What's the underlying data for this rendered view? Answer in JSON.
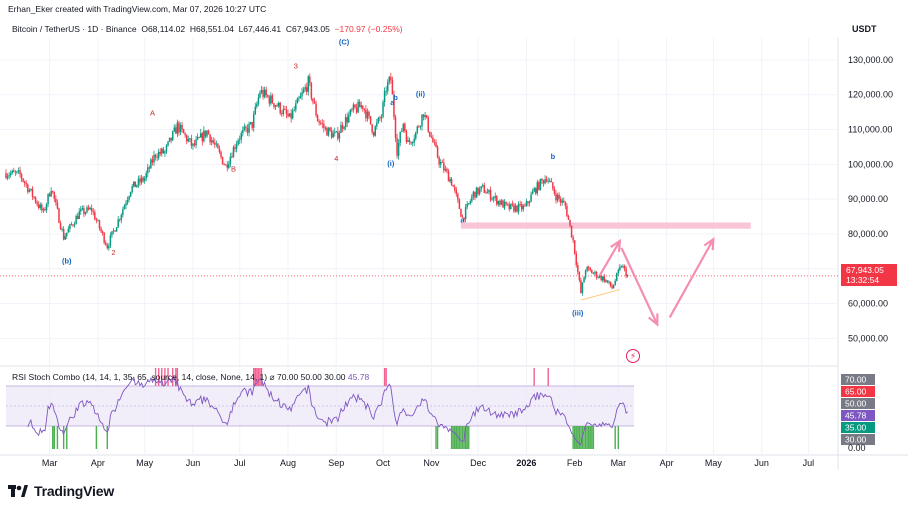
{
  "header": {
    "creator": "Erhan_Eker created with TradingView.com, Mar 07, 2026 10:27 UTC",
    "symbol": "Bitcoin / TetherUS · 1D · Binance",
    "open_label": "O",
    "open": "68,114.02",
    "high_label": "H",
    "high": "68,551.04",
    "low_label": "L",
    "low": "67,446.41",
    "close_label": "C",
    "close": "67,943.05",
    "change": "−170.97 (−0.25%)"
  },
  "currency": "USDT",
  "last_price": {
    "value": "67,943.05",
    "countdown": "13:32:54",
    "color": "#f23645"
  },
  "rsi_header": {
    "text": "RSI Stoch Combo (14, 14, 1, 35, 65, source, 14, close, None, 14, 1) ⌀ 70.00 50.00 30.00",
    "value": "45.78"
  },
  "logo": {
    "name": "TradingView",
    "icon": "tradingview-logo-icon"
  },
  "colors": {
    "up": "#089981",
    "down": "#f23645",
    "rsi_line": "#7e57c2",
    "zone": "#f8bbd0",
    "arrow": "#f48fb1",
    "wave_blue": "#1565c0",
    "wave_red": "#c62828"
  },
  "chart_data": {
    "type": "candlestick",
    "title": "Bitcoin / TetherUS · 1D · Binance",
    "currency": "USDT",
    "price_axis": {
      "ticks": [
        130000,
        120000,
        110000,
        100000,
        90000,
        80000,
        70000,
        60000,
        50000
      ],
      "tick_labels": [
        "130,000.00",
        "120,000.00",
        "110,000.00",
        "100,000.00",
        "90,000.00",
        "80,000.00",
        "70,000.00",
        "60,000.00",
        "50,000.00"
      ],
      "range": [
        43000,
        137000
      ]
    },
    "time_axis": {
      "labels": [
        "Mar",
        "Apr",
        "May",
        "Jun",
        "Jul",
        "Aug",
        "Sep",
        "Oct",
        "Nov",
        "Dec",
        "2026",
        "Feb",
        "Mar",
        "Apr",
        "May",
        "Jun",
        "Jul"
      ],
      "label_dates": [
        "2025-03-01",
        "2025-04-01",
        "2025-05-01",
        "2025-06-01",
        "2025-07-01",
        "2025-08-01",
        "2025-09-01",
        "2025-10-01",
        "2025-11-01",
        "2025-12-01",
        "2026-01-01",
        "2026-02-01",
        "2026-03-01",
        "2026-04-01",
        "2026-05-01",
        "2026-06-01",
        "2026-07-01"
      ],
      "range": [
        "2025-02-01",
        "2026-07-20"
      ]
    },
    "price_path": [
      [
        "2025-02-01",
        97500
      ],
      [
        "2025-02-10",
        97000
      ],
      [
        "2025-02-25",
        86000
      ],
      [
        "2025-03-02",
        93500
      ],
      [
        "2025-03-10",
        79000
      ],
      [
        "2025-03-20",
        86000
      ],
      [
        "2025-03-28",
        87000
      ],
      [
        "2025-04-07",
        76500
      ],
      [
        "2025-04-15",
        85000
      ],
      [
        "2025-04-22",
        93000
      ],
      [
        "2025-05-01",
        96000
      ],
      [
        "2025-05-08",
        103000
      ],
      [
        "2025-05-14",
        103500
      ],
      [
        "2025-05-22",
        111000
      ],
      [
        "2025-06-01",
        105000
      ],
      [
        "2025-06-10",
        109500
      ],
      [
        "2025-06-22",
        99500
      ],
      [
        "2025-06-30",
        107500
      ],
      [
        "2025-07-09",
        111500
      ],
      [
        "2025-07-14",
        121000
      ],
      [
        "2025-07-25",
        117000
      ],
      [
        "2025-08-02",
        113000
      ],
      [
        "2025-08-09",
        119000
      ],
      [
        "2025-08-14",
        123500
      ],
      [
        "2025-08-20",
        113000
      ],
      [
        "2025-08-25",
        110000
      ],
      [
        "2025-09-01",
        108000
      ],
      [
        "2025-09-05",
        111500
      ],
      [
        "2025-09-12",
        115500
      ],
      [
        "2025-09-18",
        117000
      ],
      [
        "2025-09-25",
        109500
      ],
      [
        "2025-09-30",
        114000
      ],
      [
        "2025-10-03",
        122000
      ],
      [
        "2025-10-06",
        124500
      ],
      [
        "2025-10-10",
        104000
      ],
      [
        "2025-10-14",
        112000
      ],
      [
        "2025-10-17",
        106000
      ],
      [
        "2025-10-22",
        109000
      ],
      [
        "2025-10-27",
        115000
      ],
      [
        "2025-10-31",
        109000
      ],
      [
        "2025-11-06",
        101000
      ],
      [
        "2025-11-14",
        95000
      ],
      [
        "2025-11-21",
        84500
      ],
      [
        "2025-11-28",
        91500
      ],
      [
        "2025-12-04",
        93000
      ],
      [
        "2025-12-12",
        90000
      ],
      [
        "2025-12-20",
        87500
      ],
      [
        "2025-12-31",
        87500
      ],
      [
        "2026-01-06",
        92500
      ],
      [
        "2026-01-14",
        96500
      ],
      [
        "2026-01-20",
        91000
      ],
      [
        "2026-01-26",
        88000
      ],
      [
        "2026-01-31",
        78000
      ],
      [
        "2026-02-05",
        63000
      ],
      [
        "2026-02-08",
        70000
      ],
      [
        "2026-02-14",
        68500
      ],
      [
        "2026-02-20",
        67000
      ],
      [
        "2026-02-25",
        64500
      ],
      [
        "2026-03-03",
        71000
      ],
      [
        "2026-03-07",
        67943
      ]
    ],
    "last_price": 67943.05,
    "horizontal_zone": {
      "from": "2025-11-20",
      "to": "2026-05-25",
      "low": 81500,
      "high": 83300
    },
    "wave_labels": [
      {
        "text": "(C)",
        "date": "2025-09-06",
        "price": 134500,
        "color": "blue"
      },
      {
        "text": "(b)",
        "date": "2025-03-12",
        "price": 71500,
        "color": "blue"
      },
      {
        "text": "A",
        "date": "2025-05-06",
        "price": 114000,
        "color": "red"
      },
      {
        "text": "B",
        "date": "2025-06-27",
        "price": 98000,
        "color": "red"
      },
      {
        "text": "2",
        "date": "2025-04-11",
        "price": 74000,
        "color": "red"
      },
      {
        "text": "3",
        "date": "2025-08-06",
        "price": 127500,
        "color": "red"
      },
      {
        "text": "4",
        "date": "2025-09-01",
        "price": 101000,
        "color": "red"
      },
      {
        "text": "(i)",
        "date": "2025-10-06",
        "price": 99500,
        "color": "blue"
      },
      {
        "text": "a",
        "date": "2025-10-07",
        "price": 117000,
        "color": "blue"
      },
      {
        "text": "b",
        "date": "2025-10-09",
        "price": 118500,
        "color": "blue"
      },
      {
        "text": "(ii)",
        "date": "2025-10-25",
        "price": 119500,
        "color": "blue"
      },
      {
        "text": "a",
        "date": "2025-11-21",
        "price": 83300,
        "color": "blue"
      },
      {
        "text": "b",
        "date": "2026-01-18",
        "price": 101500,
        "color": "blue"
      },
      {
        "text": "(iii)",
        "date": "2026-02-03",
        "price": 56500,
        "color": "blue"
      }
    ],
    "projection_arrows": [
      {
        "from": [
          "2026-02-17",
          68000
        ],
        "to": [
          "2026-03-02",
          78000
        ]
      },
      {
        "from": [
          "2026-03-03",
          76000
        ],
        "to": [
          "2026-03-26",
          54000
        ]
      },
      {
        "from": [
          "2026-04-03",
          56000
        ],
        "to": [
          "2026-05-01",
          78500
        ]
      }
    ],
    "rsi": {
      "axis_ticks": [
        70,
        65,
        50,
        45.78,
        35,
        30,
        0
      ],
      "tick_labels": [
        "70.00",
        "65.00",
        "50.00",
        "45.78",
        "35.00",
        "30.00",
        "0.00"
      ],
      "bands": {
        "upper": 70,
        "lower": 30
      },
      "current": 45.78,
      "overbought_dates": [
        "2025-05-08",
        "2025-05-10",
        "2025-05-12",
        "2025-05-14",
        "2025-05-16",
        "2025-05-19",
        "2025-05-21",
        "2025-05-22",
        "2025-07-10",
        "2025-07-11",
        "2025-07-12",
        "2025-07-13",
        "2025-07-14",
        "2025-07-15",
        "2025-10-02",
        "2025-10-03",
        "2026-01-06",
        "2026-01-15"
      ],
      "oversold_dates": [
        "2025-03-03",
        "2025-03-04",
        "2025-03-06",
        "2025-03-10",
        "2025-03-12",
        "2025-03-31",
        "2025-04-07",
        "2025-11-04",
        "2025-11-05",
        "2025-11-14",
        "2025-11-15",
        "2025-11-16",
        "2025-11-17",
        "2025-11-18",
        "2025-11-19",
        "2025-11-20",
        "2025-11-21",
        "2025-11-22",
        "2025-11-23",
        "2025-11-24",
        "2025-11-25",
        "2026-01-31",
        "2026-02-01",
        "2026-02-02",
        "2026-02-03",
        "2026-02-04",
        "2026-02-05",
        "2026-02-06",
        "2026-02-07",
        "2026-02-08",
        "2026-02-09",
        "2026-02-10",
        "2026-02-11",
        "2026-02-12",
        "2026-02-13",
        "2026-02-27",
        "2026-03-01"
      ]
    }
  }
}
